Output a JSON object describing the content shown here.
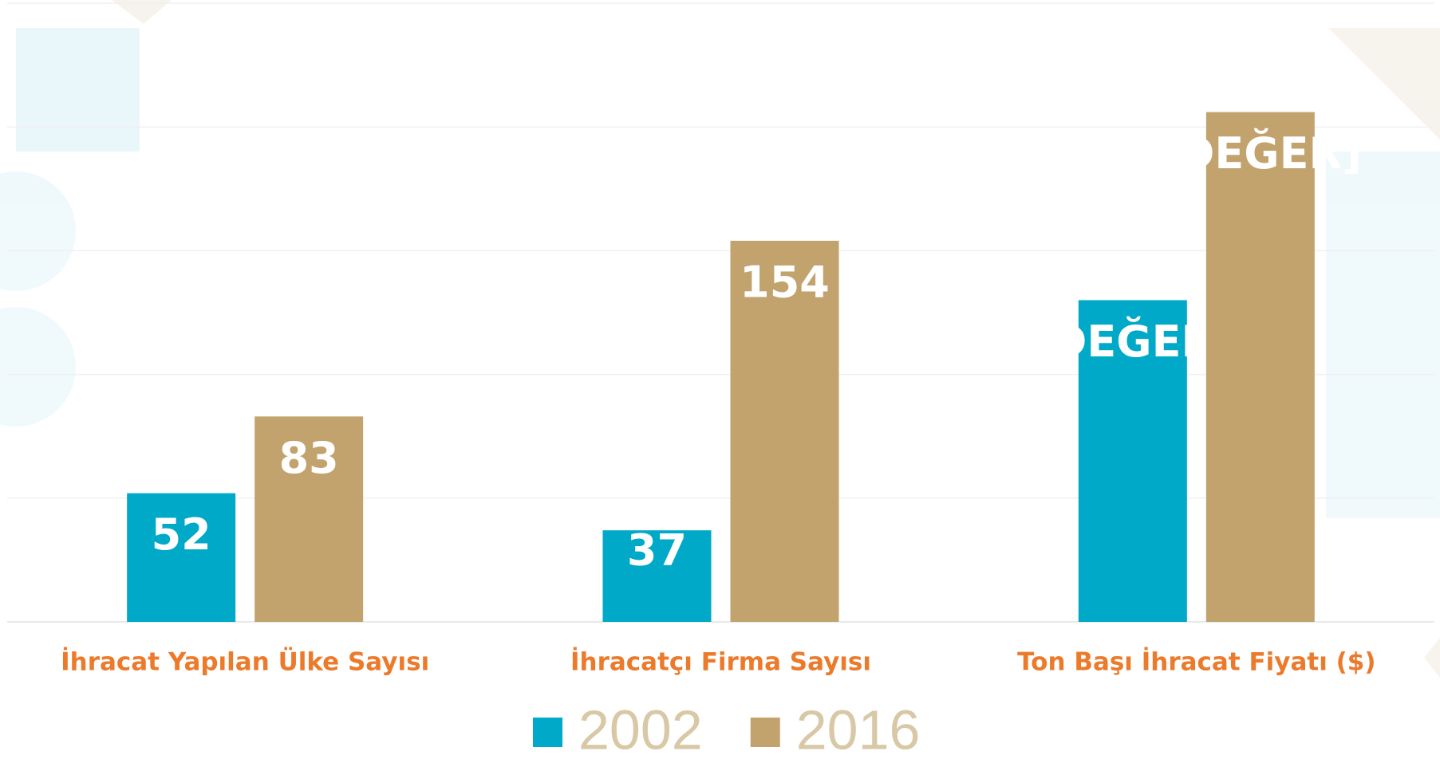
{
  "chart_data": {
    "type": "bar",
    "categories": [
      "İhracat Yapılan Ülke Sayısı",
      "İhracatçı Firma Sayısı",
      "Ton Başı İhracat Fiyatı ($)"
    ],
    "series": [
      {
        "name": "2002",
        "color": "#00a9c8",
        "values": [
          52,
          37,
          130
        ],
        "value_labels": [
          "52",
          "37",
          "[DEĞER]"
        ]
      },
      {
        "name": "2016",
        "color": "#c2a36e",
        "values": [
          83,
          154,
          206
        ],
        "value_labels": [
          "83",
          "154",
          "[DEĞER]"
        ]
      }
    ],
    "ylim": [
      0,
      250
    ],
    "yticks": [
      0,
      50,
      100,
      150,
      200,
      250
    ],
    "grid": true
  }
}
